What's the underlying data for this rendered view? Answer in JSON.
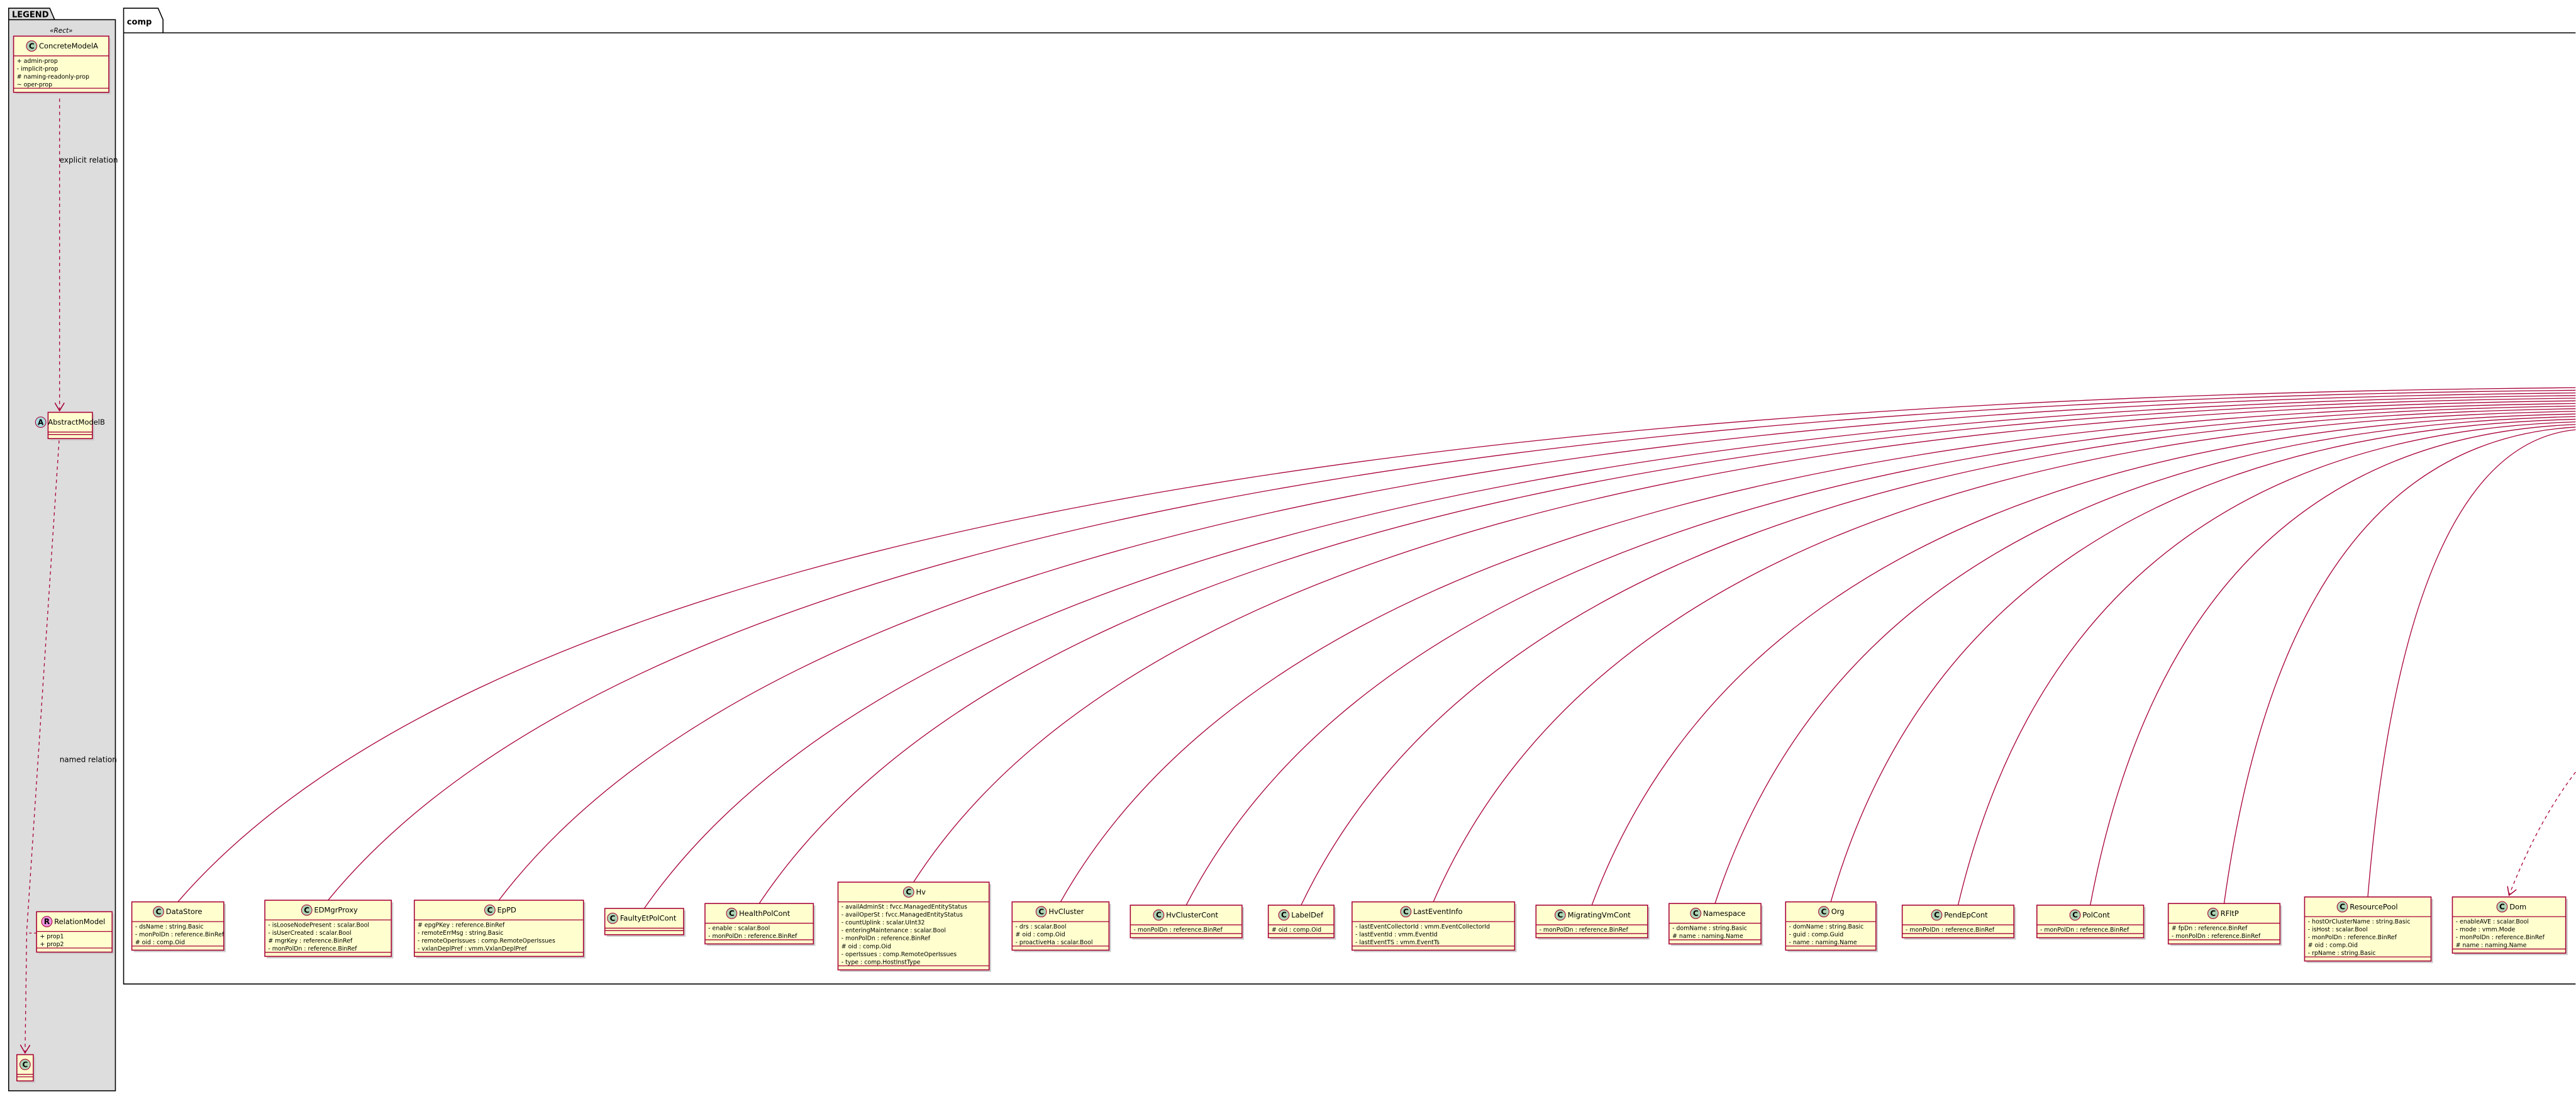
{
  "legend": {
    "title": "LEGEND",
    "stereotype": "«Rect»",
    "concrete": {
      "icon": "C",
      "name": "ConcreteModelA",
      "attrs": [
        "+ admin-prop",
        "- implicit-prop",
        "# naming-readonly-prop",
        "~ oper-prop"
      ]
    },
    "abstract": {
      "icon": "A",
      "name": "AbstractModelB"
    },
    "relation": {
      "icon": "R",
      "name": "RelationModel",
      "attrs": [
        "+ prop1",
        "+ prop2"
      ]
    },
    "target": {
      "icon": "C"
    },
    "explicit_label": "explicit relation",
    "named_label": "named relation"
  },
  "package": {
    "title": "comp",
    "classes": [
      {
        "icon": "C",
        "name": "DataStore",
        "attrs": [
          "- dsName : string.Basic",
          "- monPolDn : reference.BinRef",
          "# oid : comp.Oid"
        ]
      },
      {
        "icon": "C",
        "name": "EDMgrProxy",
        "attrs": [
          "- isLooseNodePresent : scalar.Bool",
          "- isUserCreated : scalar.Bool",
          "# mgrKey : reference.BinRef",
          "- monPolDn : reference.BinRef"
        ]
      },
      {
        "icon": "C",
        "name": "EpPD",
        "attrs": [
          "# epgPKey : reference.BinRef",
          "- remoteErrMsg : string.Basic",
          "- remoteOperIssues : comp.RemoteOperIssues",
          "- vxlanDeplPref : vmm.VxlanDeplPref"
        ]
      },
      {
        "icon": "C",
        "name": "FaultyEtPolCont",
        "attrs": []
      },
      {
        "icon": "C",
        "name": "HealthPolCont",
        "attrs": [
          "- enable : scalar.Bool",
          "- monPolDn : reference.BinRef"
        ]
      },
      {
        "icon": "C",
        "name": "Hv",
        "attrs": [
          "- availAdminSt : fvcc.ManagedEntityStatus",
          "- availOperSt : fvcc.ManagedEntityStatus",
          "- countUplink : scalar.UInt32",
          "- enteringMaintenance : scalar.Bool",
          "- monPolDn : reference.BinRef",
          "# oid : comp.Oid",
          "- operIssues : comp.RemoteOperIssues",
          "- type : comp.HostInstType"
        ]
      },
      {
        "icon": "C",
        "name": "HvCluster",
        "attrs": [
          "- drs : scalar.Bool",
          "# oid : comp.Oid",
          "- proactiveHa : scalar.Bool"
        ]
      },
      {
        "icon": "C",
        "name": "HvClusterCont",
        "attrs": [
          "- monPolDn : reference.BinRef"
        ]
      },
      {
        "icon": "C",
        "name": "LabelDef",
        "attrs": [
          "# oid : comp.Oid"
        ]
      },
      {
        "icon": "C",
        "name": "LastEventInfo",
        "attrs": [
          "- lastEventCollectorId : vmm.EventCollectorId",
          "- lastEventId : vmm.EventId",
          "- lastEventTS : vmm.EventTs"
        ]
      },
      {
        "icon": "C",
        "name": "MigratingVmCont",
        "attrs": [
          "- monPolDn : reference.BinRef"
        ]
      },
      {
        "icon": "C",
        "name": "Namespace",
        "attrs": [
          "- domName : string.Basic",
          "# name : naming.Name"
        ]
      },
      {
        "icon": "C",
        "name": "Org",
        "attrs": [
          "- domName : string.Basic",
          "- guid : comp.Guid",
          "- name : naming.Name"
        ]
      },
      {
        "icon": "C",
        "name": "PendEpCont",
        "attrs": [
          "- monPolDn : reference.BinRef"
        ]
      },
      {
        "icon": "C",
        "name": "PolCont",
        "attrs": [
          "- monPolDn : reference.BinRef"
        ]
      },
      {
        "icon": "C",
        "name": "RFltP",
        "attrs": [
          "# fpDn : reference.BinRef",
          "- monPolDn : reference.BinRef"
        ]
      },
      {
        "icon": "C",
        "name": "ResourcePool",
        "attrs": [
          "- hostOrClusterName : string.Basic",
          "- isHost : scalar.Bool",
          "- monPolDn : reference.BinRef",
          "# oid : comp.Oid",
          "- rpName : string.Basic"
        ]
      },
      {
        "icon": "C",
        "name": "Dom",
        "attrs": [
          "- enableAVE : scalar.Bool",
          "- mode : vmm.Mode",
          "- monPolDn : reference.BinRef",
          "# name : naming.Name"
        ]
      }
    ]
  }
}
